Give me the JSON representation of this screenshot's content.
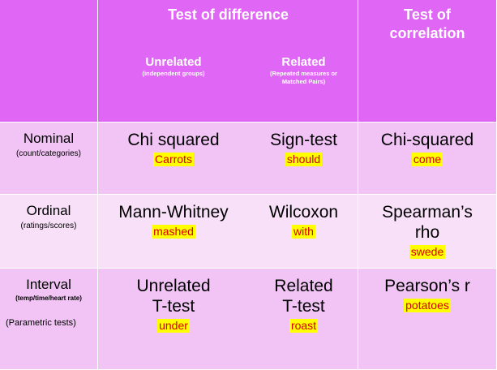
{
  "header": {
    "diff_title": "Test of difference",
    "unrelated_label": "Unrelated",
    "unrelated_note": "(independent groups)",
    "related_label": "Related",
    "related_note_line1": "(Repeated measures or",
    "related_note_line2": "Matched Pairs)",
    "corr_line1": "Test of",
    "corr_line2": "correlation"
  },
  "rows": {
    "nominal": {
      "label": "Nominal",
      "sub": "(count/categories)",
      "unrelated": "Chi squared",
      "unrelated_hint": "Carrots",
      "related": "Sign-test",
      "related_hint": "should",
      "correlation": "Chi-squared",
      "correlation_hint": "come"
    },
    "ordinal": {
      "label": "Ordinal",
      "sub": "(ratings/scores)",
      "unrelated": "Mann-Whitney",
      "unrelated_hint": "mashed",
      "related": "Wilcoxon",
      "related_hint": "with",
      "correlation_line1": "Spearman’s",
      "correlation_line2": "rho",
      "correlation_hint": "swede"
    },
    "interval": {
      "label": "Interval",
      "sub": "(temp/time/heart rate)",
      "param": "(Parametric tests)",
      "unrelated_line1": "Unrelated",
      "unrelated_line2": "T-test",
      "unrelated_hint": "under",
      "related_line1": "Related",
      "related_line2": "T-test",
      "related_hint": "roast",
      "correlation": "Pearson’s r",
      "correlation_hint": "potatoes"
    }
  },
  "colors": {
    "header_bg": "#e066f5",
    "row_a": "#f1c4f5",
    "row_b": "#f8e1f8",
    "highlight": "#ffff00",
    "hint_text": "#d40000"
  }
}
